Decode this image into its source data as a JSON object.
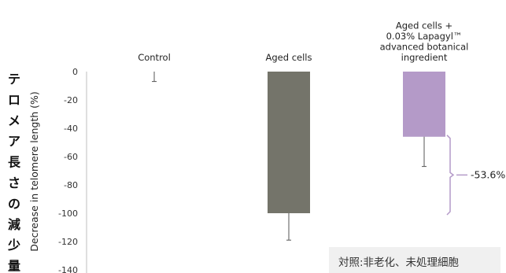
{
  "chart_data": {
    "type": "bar",
    "categories": [
      [
        "Control"
      ],
      [
        "Aged cells"
      ],
      [
        "Aged cells +",
        "0.03% Lapagyl™",
        "advanced botanical",
        "ingredient"
      ]
    ],
    "values": [
      0,
      -100,
      -46
    ],
    "error": [
      7,
      19,
      21
    ],
    "bar_colors": [
      "#d0d0d0",
      "#74746a",
      "#b49ac8"
    ],
    "ylabel": "Decrease in telomere length (%)",
    "ylabel_jp": "テロメア長さの減少量",
    "ylim": [
      -140,
      0
    ],
    "yticks": [
      0,
      -20,
      -40,
      -60,
      -80,
      -100,
      -120,
      -140
    ],
    "grid": false,
    "annotation": {
      "label": "-53.6%",
      "from_value": -46,
      "to_value": -100,
      "color": "#b49ac8"
    },
    "note": "対照:非老化、未処理細胞"
  }
}
